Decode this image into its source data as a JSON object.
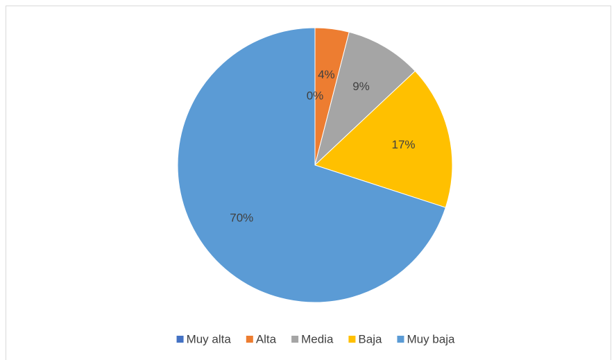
{
  "chart_data": {
    "type": "pie",
    "categories": [
      "Muy alta",
      "Alta",
      "Media",
      "Baja",
      "Muy baja"
    ],
    "values": [
      0,
      4,
      9,
      17,
      70
    ],
    "value_labels": [
      "0%",
      "4%",
      "9%",
      "17%",
      "70%"
    ],
    "colors": [
      "#4472c4",
      "#ed7d31",
      "#a5a5a5",
      "#ffc000",
      "#5b9bd5"
    ],
    "legend": "bottom"
  }
}
